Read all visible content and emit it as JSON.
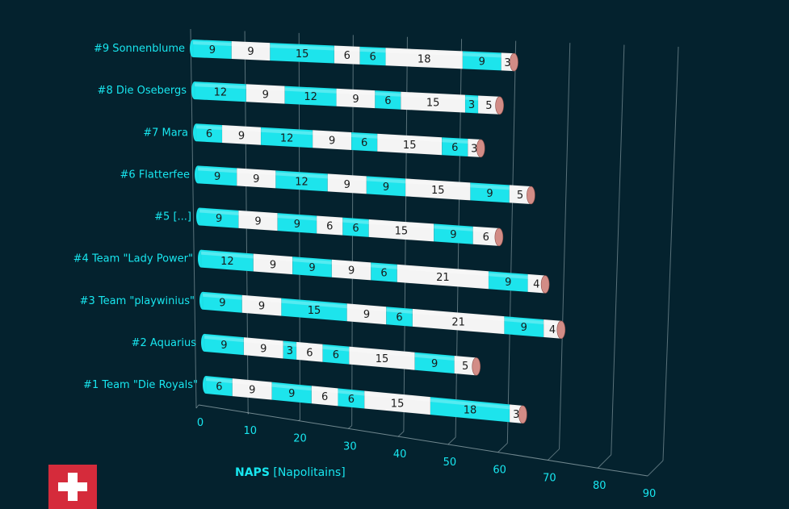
{
  "chart_data": {
    "type": "bar",
    "orientation": "horizontal",
    "stacked": true,
    "title": "",
    "xlabel_bold": "NAPS",
    "xlabel_rest": "[Napolitains]",
    "xlim": [
      0,
      90
    ],
    "xticks": [
      "0",
      "10",
      "20",
      "30",
      "40",
      "50",
      "60",
      "70",
      "80",
      "90"
    ],
    "categories": [
      "#9 Sonnenblume",
      "#8 Die Osebergs",
      "#7 Mara",
      "#6 Flatterfee",
      "#5 [...]",
      "#4 Team \"Lady Power\"",
      "#3 Team \"playwinius\"",
      "#2 Aquarius",
      "#1 Team \"Die Royals\""
    ],
    "segments": [
      [
        9,
        9,
        15,
        6,
        6,
        18,
        9,
        3
      ],
      [
        12,
        9,
        12,
        9,
        6,
        15,
        3,
        5
      ],
      [
        6,
        9,
        12,
        9,
        6,
        15,
        6,
        3
      ],
      [
        9,
        9,
        12,
        9,
        9,
        15,
        9,
        5
      ],
      [
        9,
        9,
        9,
        6,
        6,
        15,
        9,
        6
      ],
      [
        12,
        9,
        9,
        9,
        6,
        21,
        9,
        4
      ],
      [
        9,
        9,
        15,
        9,
        6,
        21,
        9,
        4
      ],
      [
        9,
        9,
        3,
        6,
        6,
        15,
        9,
        5
      ],
      [
        6,
        9,
        9,
        6,
        6,
        15,
        18,
        3
      ]
    ],
    "colors": {
      "cyan": "#1de4ec",
      "white": "#f4f4f4",
      "cap": "#d28c86"
    },
    "grid": true
  },
  "flag": {
    "name": "Switzerland"
  }
}
